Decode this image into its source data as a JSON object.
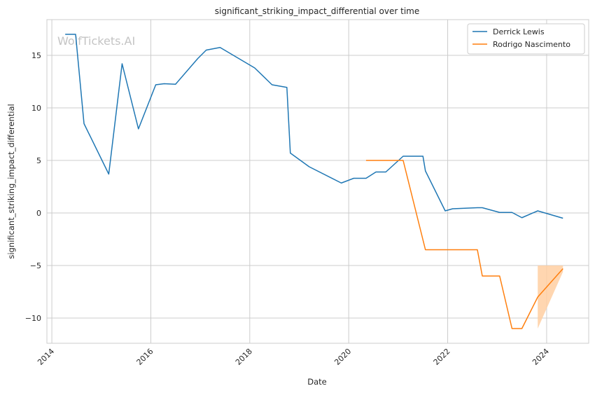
{
  "chart_data": {
    "type": "line",
    "title": "significant_striking_impact_differential over time",
    "xlabel": "Date",
    "ylabel": "significant_striking_impact_differential",
    "xlim": [
      2013.9,
      2024.85
    ],
    "ylim": [
      -12.4,
      18.4
    ],
    "x_ticks": [
      2014,
      2016,
      2018,
      2020,
      2022,
      2024
    ],
    "y_ticks": [
      -10,
      -5,
      0,
      5,
      10,
      15
    ],
    "y_tick_labels": [
      "−10",
      "−5",
      "0",
      "5",
      "10",
      "15"
    ],
    "grid": true,
    "legend_position": "top-right",
    "watermark": "WolfTickets.AI",
    "series": [
      {
        "name": "Derrick Lewis",
        "color": "#1f77b4",
        "points": [
          [
            2014.27,
            17.0
          ],
          [
            2014.48,
            17.0
          ],
          [
            2014.65,
            8.5
          ],
          [
            2015.15,
            3.7
          ],
          [
            2015.42,
            14.2
          ],
          [
            2015.75,
            8.0
          ],
          [
            2016.1,
            12.2
          ],
          [
            2016.27,
            12.3
          ],
          [
            2016.5,
            12.25
          ],
          [
            2016.95,
            14.7
          ],
          [
            2017.12,
            15.5
          ],
          [
            2017.4,
            15.75
          ],
          [
            2018.1,
            13.8
          ],
          [
            2018.45,
            12.2
          ],
          [
            2018.75,
            11.95
          ],
          [
            2018.82,
            5.7
          ],
          [
            2019.2,
            4.4
          ],
          [
            2019.85,
            2.85
          ],
          [
            2020.1,
            3.3
          ],
          [
            2020.35,
            3.3
          ],
          [
            2020.55,
            3.9
          ],
          [
            2020.75,
            3.9
          ],
          [
            2021.1,
            5.4
          ],
          [
            2021.5,
            5.4
          ],
          [
            2021.55,
            4.0
          ],
          [
            2021.95,
            0.2
          ],
          [
            2022.1,
            0.4
          ],
          [
            2022.6,
            0.5
          ],
          [
            2022.7,
            0.5
          ],
          [
            2023.05,
            0.05
          ],
          [
            2023.3,
            0.05
          ],
          [
            2023.5,
            -0.45
          ],
          [
            2023.82,
            0.2
          ],
          [
            2024.33,
            -0.5
          ]
        ]
      },
      {
        "name": "Rodrigo Nascimento",
        "color": "#ff7f0e",
        "band_color": "#ffcfa2",
        "points": [
          [
            2020.35,
            5.0
          ],
          [
            2021.1,
            5.0
          ],
          [
            2021.55,
            -3.5
          ],
          [
            2022.6,
            -3.5
          ],
          [
            2022.7,
            -6.0
          ],
          [
            2023.05,
            -6.0
          ],
          [
            2023.3,
            -11.0
          ],
          [
            2023.5,
            -11.0
          ],
          [
            2023.82,
            -8.0
          ],
          [
            2024.33,
            -5.3
          ]
        ],
        "band": [
          [
            2023.82,
            -5.0,
            -11.0
          ],
          [
            2024.33,
            -5.0,
            -5.6
          ]
        ]
      }
    ]
  }
}
